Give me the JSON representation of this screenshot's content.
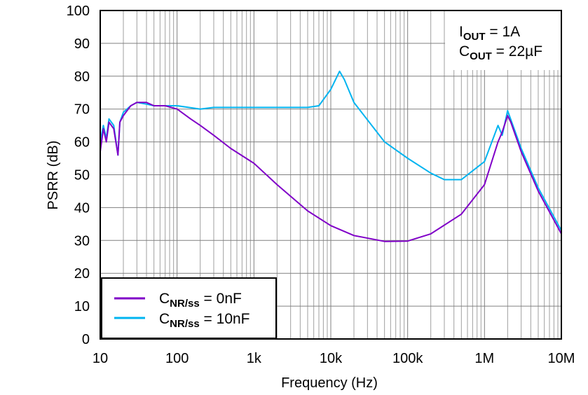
{
  "chart_data": {
    "type": "line",
    "title": "",
    "xlabel": "Frequency (Hz)",
    "ylabel": "PSRR (dB)",
    "xscale": "log",
    "xlim": [
      10,
      10000000
    ],
    "ylim": [
      0,
      100
    ],
    "grid": true,
    "x_ticks": [
      10,
      100,
      1000,
      10000,
      100000,
      1000000,
      10000000
    ],
    "x_tick_labels": [
      "10",
      "100",
      "1k",
      "10k",
      "100k",
      "1M",
      "10M"
    ],
    "y_ticks": [
      0,
      10,
      20,
      30,
      40,
      50,
      60,
      70,
      80,
      90,
      100
    ],
    "y_tick_labels": [
      "0",
      "10",
      "20",
      "30",
      "40",
      "50",
      "60",
      "70",
      "80",
      "90",
      "100"
    ],
    "legend_position": "bottom-left",
    "annotation": [
      {
        "main": "I",
        "sub": "OUT",
        "rest": " = 1A"
      },
      {
        "main": "C",
        "sub": "OUT",
        "rest": " = 22µF"
      }
    ],
    "series": [
      {
        "name": "CNR/ss = 0nF",
        "legend": {
          "main": "C",
          "sub": "NR/ss",
          "rest": " = 0nF"
        },
        "color": "#8000C8",
        "x": [
          10,
          11,
          12,
          13,
          15,
          17,
          18,
          20,
          25,
          30,
          40,
          50,
          70,
          100,
          150,
          200,
          300,
          500,
          1000,
          2000,
          5000,
          10000,
          20000,
          50000,
          100000,
          200000,
          500000,
          1000000,
          1500000,
          1700000,
          2000000,
          2200000,
          3000000,
          5000000,
          10000000
        ],
        "y": [
          57,
          64,
          60,
          66,
          64,
          56,
          66,
          68,
          71,
          72,
          72,
          71,
          71,
          70,
          67,
          65,
          62,
          58,
          53.5,
          47,
          39,
          34.5,
          31.5,
          29.7,
          29.8,
          32,
          38,
          47,
          60,
          63,
          68,
          66,
          57,
          45,
          32
        ]
      },
      {
        "name": "CNR/ss = 10nF",
        "legend": {
          "main": "C",
          "sub": "NR/ss",
          "rest": " = 10nF"
        },
        "color": "#00B4F0",
        "x": [
          10,
          11,
          12,
          13,
          15,
          17,
          18,
          20,
          25,
          30,
          40,
          50,
          70,
          100,
          200,
          300,
          500,
          1000,
          2000,
          5000,
          7000,
          10000,
          13000,
          15000,
          20000,
          50000,
          100000,
          200000,
          300000,
          500000,
          1000000,
          1500000,
          1700000,
          2000000,
          3000000,
          5000000,
          10000000
        ],
        "y": [
          60,
          65,
          61,
          67,
          65,
          56,
          66,
          69,
          71,
          72,
          71.5,
          71,
          71,
          71,
          70,
          70.5,
          70.5,
          70.5,
          70.5,
          70.5,
          71,
          76,
          81.5,
          79,
          72,
          60,
          55,
          50.5,
          48.5,
          48.5,
          54,
          65,
          62,
          69.5,
          58,
          46,
          33
        ]
      }
    ]
  }
}
